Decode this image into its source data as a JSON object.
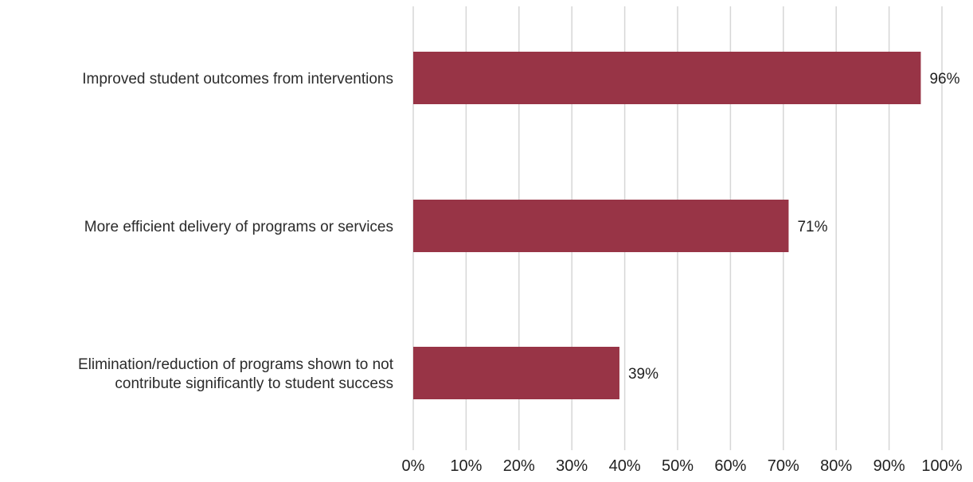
{
  "chart_data": {
    "type": "bar",
    "orientation": "horizontal",
    "title": "",
    "xlabel": "",
    "ylabel": "",
    "categories": [
      "Improved student outcomes from interventions",
      "More efficient delivery of programs or services",
      "Elimination/reduction of programs shown to not contribute significantly to student success"
    ],
    "category_lines": [
      [
        "Improved student outcomes from interventions"
      ],
      [
        "More efficient delivery of programs or services"
      ],
      [
        "Elimination/reduction of programs shown to not",
        "contribute significantly to student success"
      ]
    ],
    "values": [
      96,
      71,
      39
    ],
    "value_labels": [
      "96%",
      "71%",
      "39%"
    ],
    "xlim": [
      0,
      100
    ],
    "x_ticks": [
      0,
      10,
      20,
      30,
      40,
      50,
      60,
      70,
      80,
      90,
      100
    ],
    "x_tick_labels": [
      "0%",
      "10%",
      "20%",
      "30%",
      "40%",
      "50%",
      "60%",
      "70%",
      "80%",
      "90%",
      "100%"
    ],
    "grid": true,
    "legend": "none",
    "colors": {
      "bar": "#983446",
      "grid": "#d6d6d6",
      "text": "#1f1f1f"
    }
  }
}
